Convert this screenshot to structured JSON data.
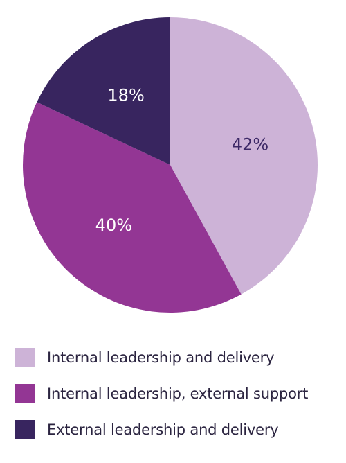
{
  "chart_data": {
    "type": "pie",
    "slices": [
      {
        "label": "Internal leadership and delivery",
        "value": 42,
        "display": "42%",
        "color": "#cdb3d7",
        "text_color": "#3c2866"
      },
      {
        "label": "Internal leadership, external support",
        "value": 40,
        "display": "40%",
        "color": "#933694",
        "text_color": "#ffffff"
      },
      {
        "label": "External leadership and delivery",
        "value": 18,
        "display": "18%",
        "color": "#38255f",
        "text_color": "#ffffff"
      }
    ],
    "start": "12 o'clock",
    "direction": "clockwise",
    "legend_position": "bottom"
  }
}
